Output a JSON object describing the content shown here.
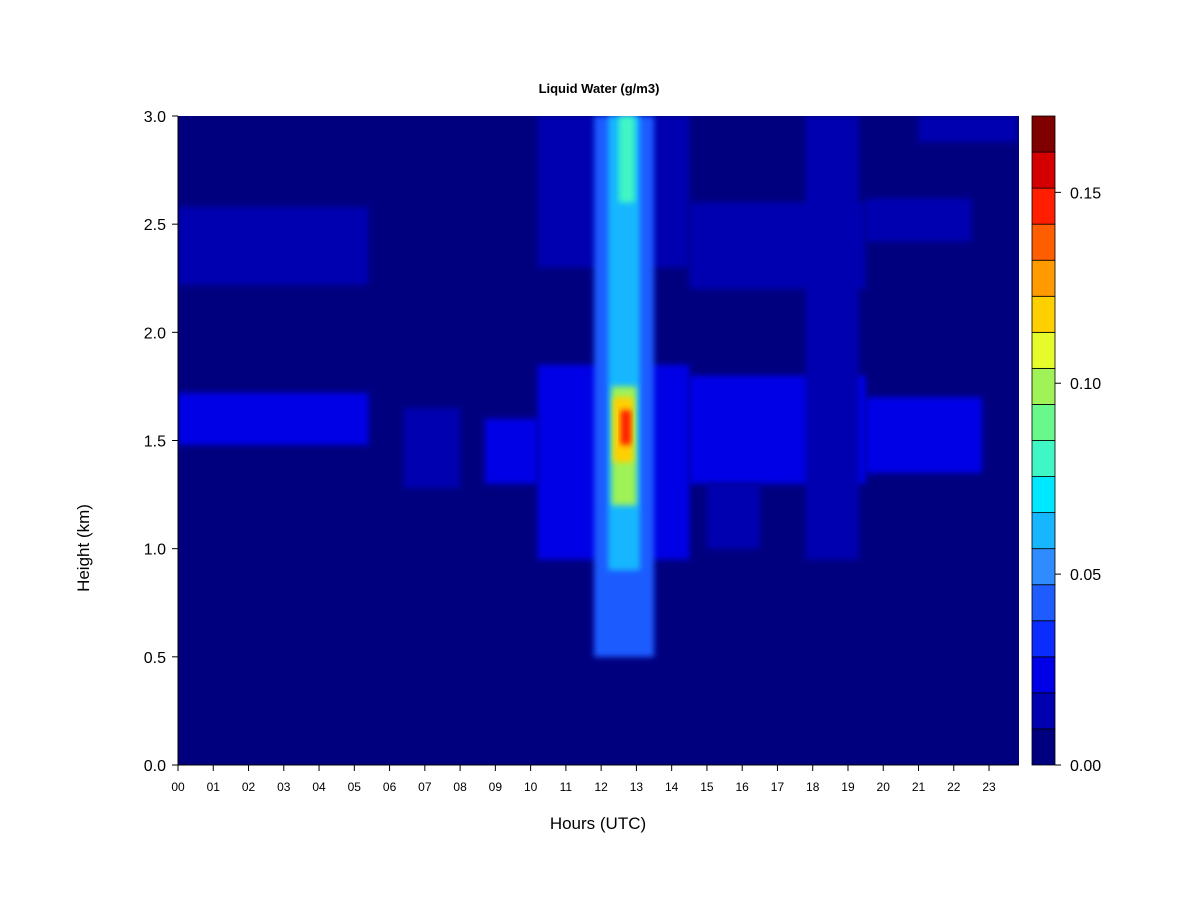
{
  "chart_data": {
    "type": "heatmap",
    "title": "Liquid Water (g/m3)",
    "xlabel": "Hours (UTC)",
    "ylabel": "Height (km)",
    "xlim": [
      0,
      23.85
    ],
    "ylim": [
      0,
      3.0
    ],
    "x_ticks": [
      "00",
      "01",
      "02",
      "03",
      "04",
      "05",
      "06",
      "07",
      "08",
      "09",
      "10",
      "11",
      "12",
      "13",
      "14",
      "15",
      "16",
      "17",
      "18",
      "19",
      "20",
      "21",
      "22",
      "23"
    ],
    "y_ticks": [
      "0.0",
      "0.5",
      "1.0",
      "1.5",
      "2.0",
      "2.5",
      "3.0"
    ],
    "colorbar": {
      "min": 0.0,
      "max": 0.17,
      "levels": 17,
      "tick_values": [
        0.0,
        0.05,
        0.1,
        0.15
      ],
      "tick_labels": [
        "0.00",
        "0.05",
        "0.10",
        "0.15"
      ],
      "colors": [
        "#00007f",
        "#0000b0",
        "#0000e6",
        "#0a2cff",
        "#1f5cff",
        "#2f8cff",
        "#17b7ff",
        "#00e8ff",
        "#3ff7c4",
        "#6af88b",
        "#9ff257",
        "#e5fb2a",
        "#ffd000",
        "#ff9a00",
        "#ff5e00",
        "#ff1e00",
        "#d40000",
        "#800000"
      ]
    },
    "regions": [
      {
        "x": [
          0.0,
          5.4
        ],
        "y": [
          2.22,
          2.58
        ],
        "value": 0.018
      },
      {
        "x": [
          0.0,
          5.4
        ],
        "y": [
          1.48,
          1.72
        ],
        "value": 0.02
      },
      {
        "x": [
          6.4,
          8.0
        ],
        "y": [
          1.28,
          1.65
        ],
        "value": 0.015
      },
      {
        "x": [
          8.7,
          10.2
        ],
        "y": [
          1.3,
          1.6
        ],
        "value": 0.02
      },
      {
        "x": [
          10.2,
          14.5
        ],
        "y": [
          0.95,
          1.85
        ],
        "value": 0.022
      },
      {
        "x": [
          10.2,
          14.5
        ],
        "y": [
          2.3,
          3.0
        ],
        "value": 0.018
      },
      {
        "x": [
          14.5,
          19.5
        ],
        "y": [
          2.2,
          2.6
        ],
        "value": 0.015
      },
      {
        "x": [
          14.5,
          19.5
        ],
        "y": [
          1.3,
          1.8
        ],
        "value": 0.022
      },
      {
        "x": [
          15.0,
          16.5
        ],
        "y": [
          1.0,
          1.3
        ],
        "value": 0.014
      },
      {
        "x": [
          17.8,
          19.3
        ],
        "y": [
          0.95,
          3.0
        ],
        "value": 0.017
      },
      {
        "x": [
          19.5,
          22.8
        ],
        "y": [
          1.35,
          1.7
        ],
        "value": 0.02
      },
      {
        "x": [
          19.5,
          22.5
        ],
        "y": [
          2.42,
          2.62
        ],
        "value": 0.015
      },
      {
        "x": [
          21.0,
          23.8
        ],
        "y": [
          2.88,
          3.0
        ],
        "value": 0.018
      },
      {
        "x": [
          11.8,
          13.5
        ],
        "y": [
          0.5,
          3.0
        ],
        "value": 0.045
      },
      {
        "x": [
          12.2,
          13.1
        ],
        "y": [
          0.9,
          3.0
        ],
        "value": 0.068
      },
      {
        "x": [
          12.3,
          13.0
        ],
        "y": [
          1.2,
          1.75
        ],
        "value": 0.1
      },
      {
        "x": [
          12.35,
          12.9
        ],
        "y": [
          1.4,
          1.7
        ],
        "value": 0.128
      },
      {
        "x": [
          12.55,
          12.85
        ],
        "y": [
          1.48,
          1.64
        ],
        "value": 0.152
      },
      {
        "x": [
          12.5,
          12.95
        ],
        "y": [
          2.6,
          3.0
        ],
        "value": 0.09
      }
    ]
  }
}
